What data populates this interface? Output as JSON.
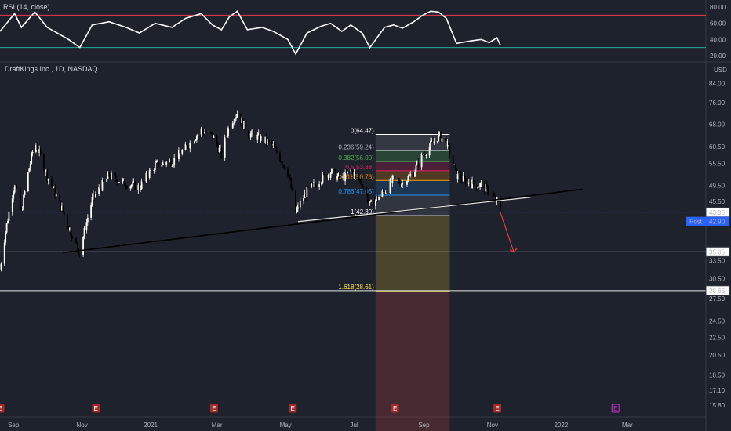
{
  "rsi_panel": {
    "label": "RSI (14, close)",
    "axis_ticks": [
      "80.00",
      "60.00",
      "40.00",
      "20.00"
    ],
    "overbought_color": "#f23645",
    "oversold_color": "#22ab94"
  },
  "main_panel": {
    "title": "DraftKings Inc., 1D, NASDAQ",
    "currency": "USD",
    "price_ticks": [
      "84.00",
      "76.00",
      "68.00",
      "60.50",
      "55.50",
      "49.50",
      "45.50",
      "33.50",
      "30.50",
      "27.50",
      "24.50",
      "22.50",
      "20.50",
      "18.50",
      "17.10",
      "15.80"
    ],
    "last_price": "43.05",
    "post_label": "Post",
    "post_price": "42.90",
    "level_labels": [
      "35.05",
      "28.66"
    ]
  },
  "x_axis": {
    "labels": [
      "Sep",
      "Nov",
      "2021",
      "Mar",
      "May",
      "Jul",
      "Sep",
      "Nov",
      "2022",
      "Mar"
    ]
  },
  "fibonacci": {
    "levels": [
      {
        "label": "0(64.47)",
        "color": "#ffffff"
      },
      {
        "label": "0.236(59.24)",
        "color": "#b2b5be"
      },
      {
        "label": "0.382(56.00)",
        "color": "#4caf50"
      },
      {
        "label": "0.5(53.38)",
        "color": "#e91e63"
      },
      {
        "label": "0.618(50.76)",
        "color": "#ff9800"
      },
      {
        "label": "0.786(47.05)",
        "color": "#2196f3"
      },
      {
        "label": "1(42.30)",
        "color": "#ffffff"
      },
      {
        "label": "1.618(28.61)",
        "color": "#ffeb3b"
      }
    ]
  },
  "earnings_marker": "E",
  "chart_data": {
    "type": "candlestick",
    "title": "DraftKings Inc., 1D, NASDAQ",
    "ylabel": "USD",
    "ylim": [
      15.0,
      88.0
    ],
    "y_scale": "log",
    "x_range": [
      "2020-08-20",
      "2022-03-15"
    ],
    "close_anchors": {
      "dates": [
        "2020-08-20",
        "2020-09-02",
        "2020-09-08",
        "2020-09-20",
        "2020-10-01",
        "2020-10-20",
        "2020-10-30",
        "2020-11-10",
        "2020-11-25",
        "2020-12-10",
        "2020-12-22",
        "2021-01-05",
        "2021-01-20",
        "2021-02-01",
        "2021-02-15",
        "2021-02-25",
        "2021-03-05",
        "2021-03-12",
        "2021-03-19",
        "2021-03-28",
        "2021-04-10",
        "2021-04-20",
        "2021-05-03",
        "2021-05-10",
        "2021-05-20",
        "2021-06-01",
        "2021-06-10",
        "2021-06-20",
        "2021-06-28",
        "2021-07-08",
        "2021-07-15",
        "2021-07-28",
        "2021-08-05",
        "2021-08-13",
        "2021-08-23",
        "2021-08-31",
        "2021-09-07",
        "2021-09-14",
        "2021-09-21",
        "2021-09-30",
        "2021-10-12",
        "2021-10-22",
        "2021-10-29",
        "2021-11-05",
        "2021-11-08"
      ],
      "close": [
        32.0,
        50.0,
        43.0,
        62.0,
        52.0,
        40.0,
        34.8,
        46.0,
        52.0,
        50.0,
        49.0,
        55.0,
        56.0,
        60.0,
        66.0,
        64.0,
        58.0,
        68.0,
        72.0,
        65.0,
        63.0,
        60.5,
        53.0,
        43.0,
        48.0,
        51.0,
        53.0,
        51.0,
        53.5,
        50.0,
        44.5,
        48.0,
        51.0,
        50.0,
        53.0,
        58.0,
        61.0,
        64.0,
        62.0,
        52.0,
        50.0,
        49.5,
        48.0,
        45.5,
        43.0
      ]
    },
    "rsi": {
      "name": "RSI (14, close)",
      "overbought": 70,
      "oversold": 30,
      "ylim": [
        15,
        85
      ],
      "dates": [
        "2020-08-20",
        "2020-09-02",
        "2020-09-08",
        "2020-09-20",
        "2020-10-01",
        "2020-10-20",
        "2020-10-30",
        "2020-11-10",
        "2020-11-25",
        "2020-12-10",
        "2020-12-22",
        "2021-01-05",
        "2021-01-20",
        "2021-02-01",
        "2021-02-15",
        "2021-02-25",
        "2021-03-05",
        "2021-03-12",
        "2021-03-19",
        "2021-03-28",
        "2021-04-10",
        "2021-04-20",
        "2021-05-03",
        "2021-05-10",
        "2021-05-20",
        "2021-06-01",
        "2021-06-10",
        "2021-06-20",
        "2021-06-28",
        "2021-07-08",
        "2021-07-15",
        "2021-07-28",
        "2021-08-05",
        "2021-08-13",
        "2021-08-23",
        "2021-08-31",
        "2021-09-07",
        "2021-09-14",
        "2021-09-21",
        "2021-09-30",
        "2021-10-12",
        "2021-10-22",
        "2021-10-29",
        "2021-11-05",
        "2021-11-08"
      ],
      "values": [
        50,
        72,
        55,
        74,
        55,
        40,
        30,
        58,
        62,
        55,
        48,
        60,
        55,
        66,
        72,
        58,
        52,
        68,
        75,
        52,
        55,
        50,
        40,
        22,
        48,
        56,
        60,
        50,
        58,
        48,
        30,
        55,
        58,
        54,
        62,
        70,
        75,
        74,
        66,
        35,
        38,
        40,
        36,
        42,
        33
      ]
    },
    "fibonacci_retracement": {
      "start_date": "2021-07-20",
      "end_date": "2021-09-24",
      "levels": [
        {
          "ratio": 0,
          "price": 64.47
        },
        {
          "ratio": 0.236,
          "price": 59.24
        },
        {
          "ratio": 0.382,
          "price": 56.0
        },
        {
          "ratio": 0.5,
          "price": 53.38
        },
        {
          "ratio": 0.618,
          "price": 50.76
        },
        {
          "ratio": 0.786,
          "price": 47.05
        },
        {
          "ratio": 1,
          "price": 42.3
        },
        {
          "ratio": 1.618,
          "price": 28.61
        }
      ]
    },
    "horizontal_levels": [
      35.05,
      28.66
    ],
    "last_price": 43.05,
    "post_price": 42.9,
    "trendlines": [
      {
        "from": {
          "date": "2020-10-15",
          "price": 34.9
        },
        "to": {
          "date": "2022-01-20",
          "price": 48.5
        }
      },
      {
        "from": {
          "date": "2021-05-12",
          "price": 41.0
        },
        "to": {
          "date": "2021-12-05",
          "price": 46.5
        }
      }
    ],
    "projection_arrow": {
      "from": {
        "date": "2021-11-08",
        "price": 43.0
      },
      "to": {
        "date": "2021-11-20",
        "price": 35.0
      }
    },
    "earnings_dates": [
      "2020-08-20",
      "2020-11-13",
      "2021-02-26",
      "2021-05-07",
      "2021-08-06",
      "2021-11-05",
      "2022-02-18"
    ]
  }
}
